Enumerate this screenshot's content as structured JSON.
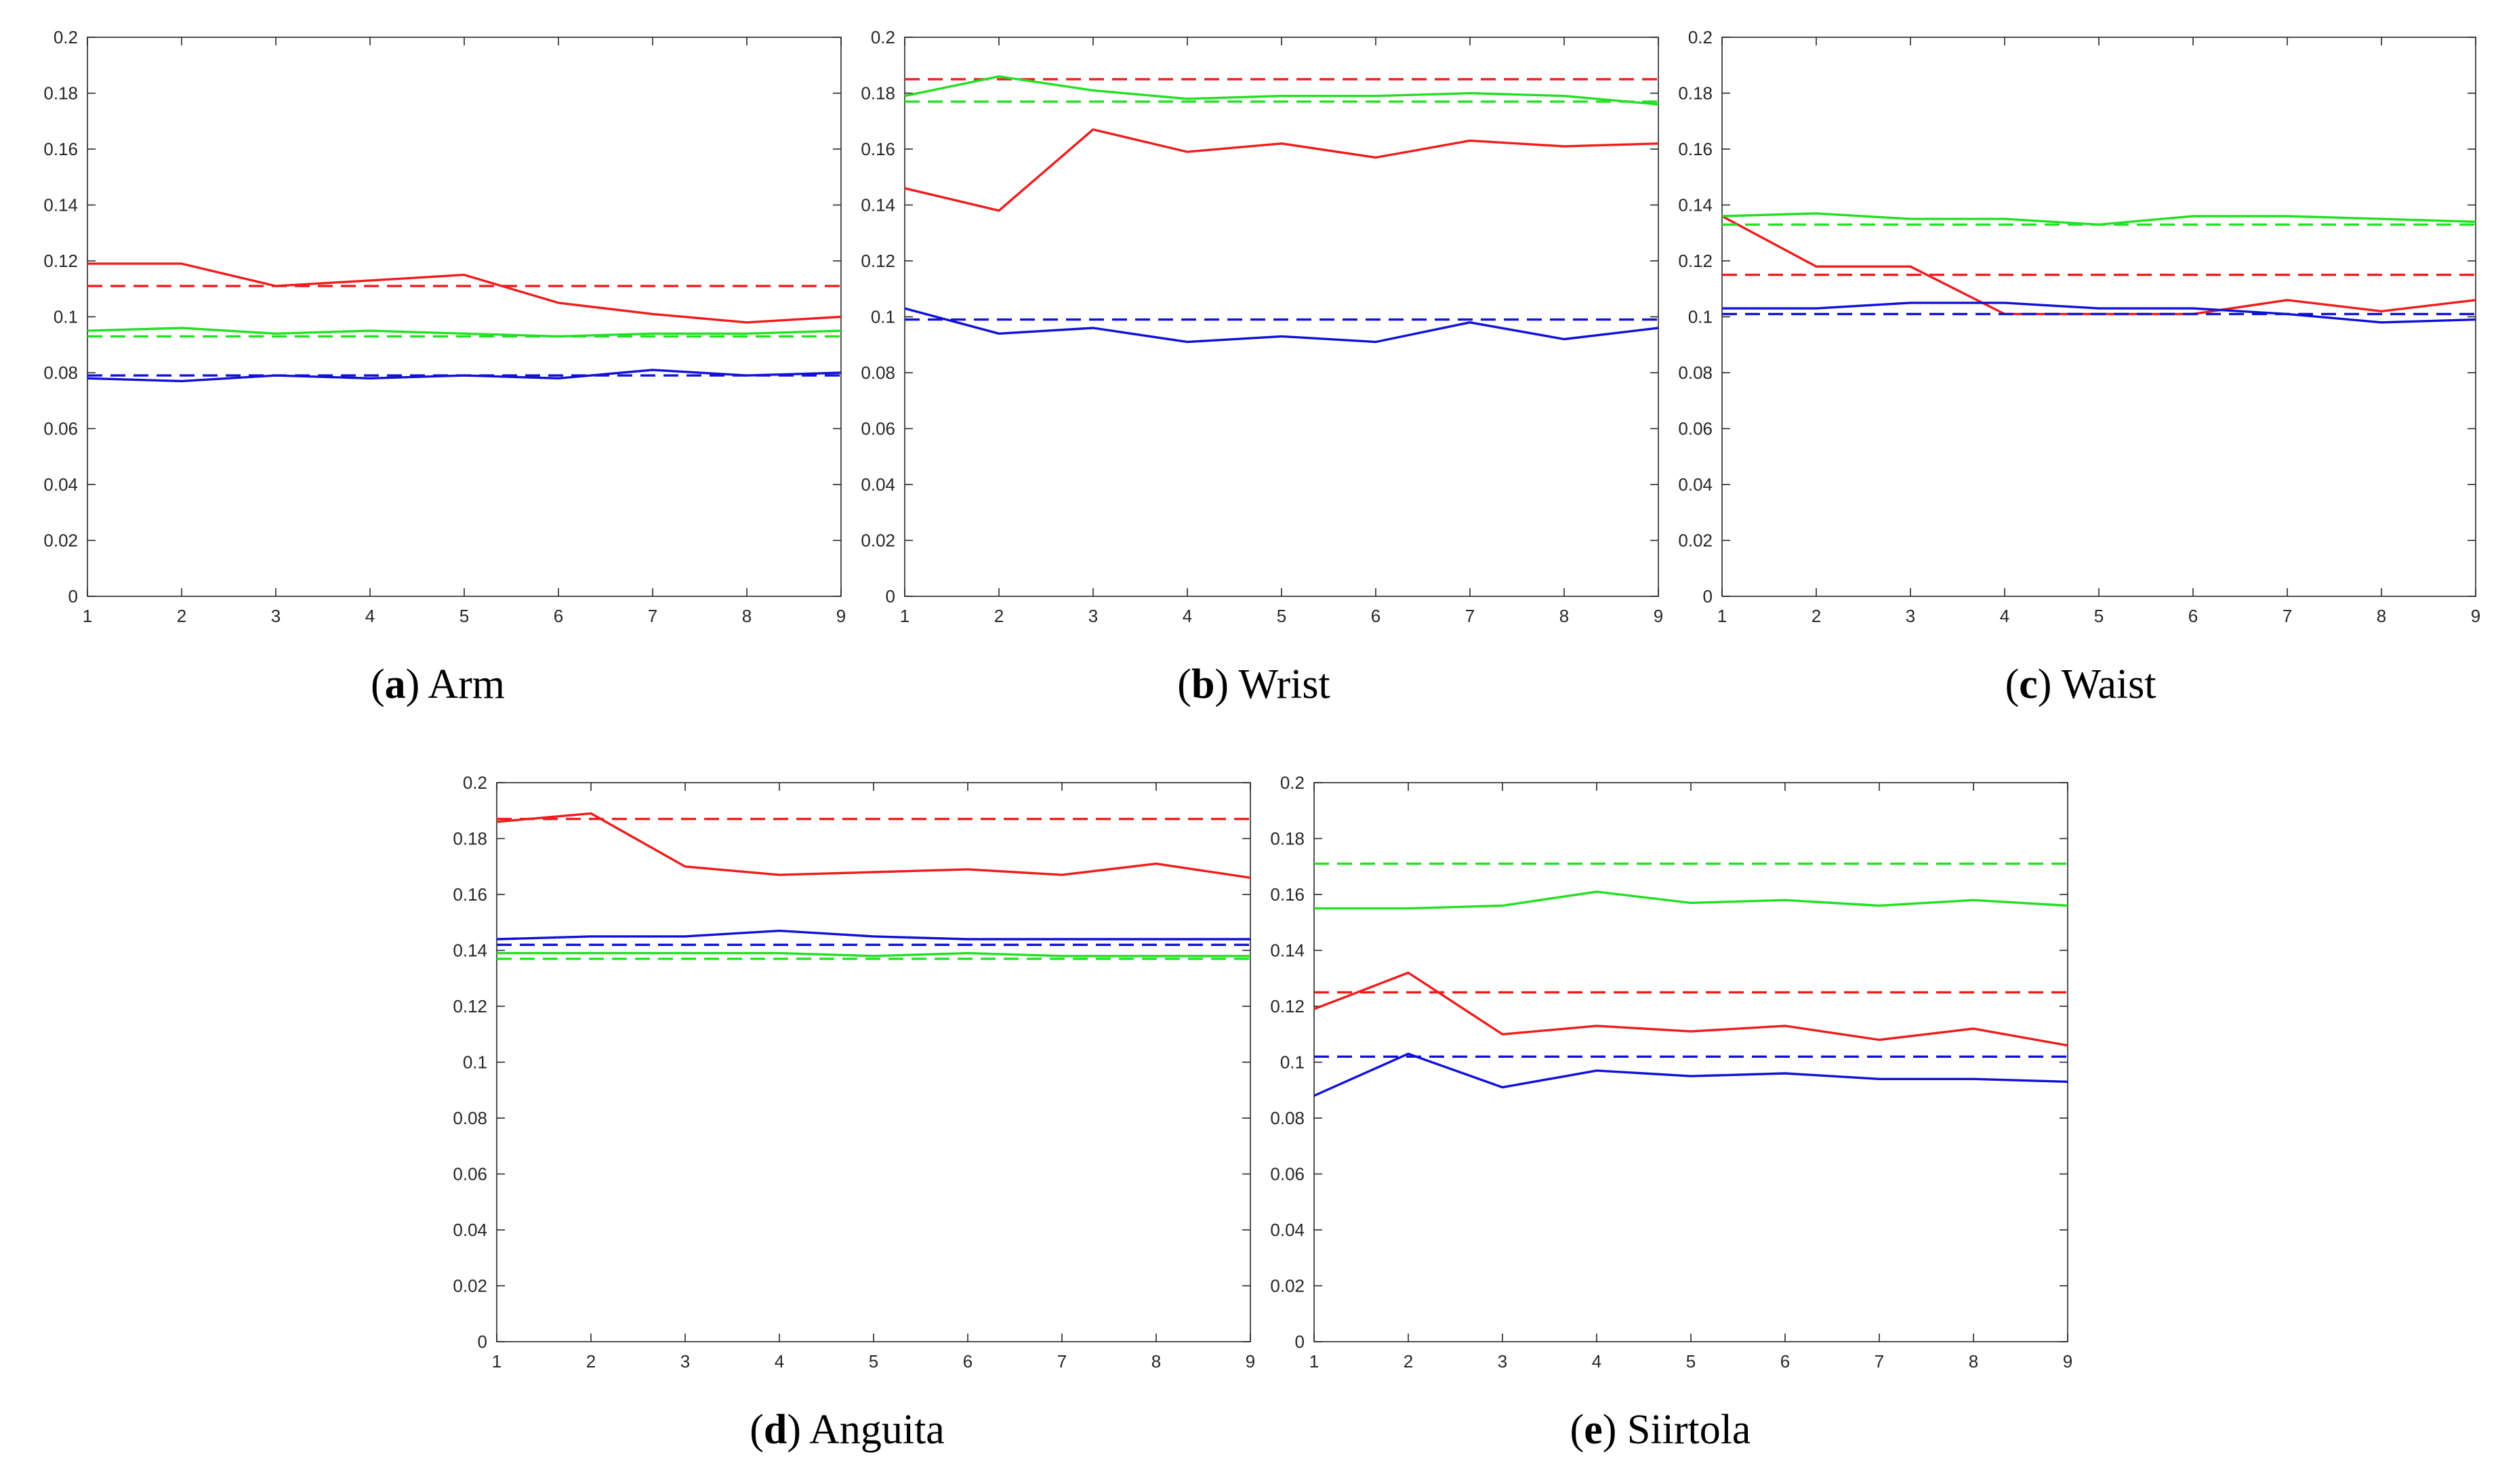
{
  "colors": {
    "red": "#ee1c1c",
    "green": "#22e022",
    "blue": "#1010d8",
    "axis": "#262626"
  },
  "chart_data": [
    {
      "type": "line",
      "caption_letter": "(a)",
      "caption_text": "Arm",
      "x": [
        1,
        2,
        3,
        4,
        5,
        6,
        7,
        8,
        9
      ],
      "xlim": [
        1,
        9
      ],
      "ylim": [
        0,
        0.2
      ],
      "x_ticks": [
        "1",
        "2",
        "3",
        "4",
        "5",
        "6",
        "7",
        "8",
        "9"
      ],
      "y_ticks": [
        "0",
        "0.02",
        "0.04",
        "0.06",
        "0.08",
        "0.1",
        "0.12",
        "0.14",
        "0.16",
        "0.18",
        "0.2"
      ],
      "grid": false,
      "series": [
        {
          "color": "red",
          "style": "solid",
          "values": [
            0.119,
            0.119,
            0.111,
            0.113,
            0.115,
            0.105,
            0.101,
            0.098,
            0.1
          ]
        },
        {
          "color": "red",
          "style": "dashed",
          "values": [
            0.111,
            0.111,
            0.111,
            0.111,
            0.111,
            0.111,
            0.111,
            0.111,
            0.111
          ]
        },
        {
          "color": "green",
          "style": "solid",
          "values": [
            0.095,
            0.096,
            0.094,
            0.095,
            0.094,
            0.093,
            0.094,
            0.094,
            0.095
          ]
        },
        {
          "color": "green",
          "style": "dashed",
          "values": [
            0.093,
            0.093,
            0.093,
            0.093,
            0.093,
            0.093,
            0.093,
            0.093,
            0.093
          ]
        },
        {
          "color": "blue",
          "style": "solid",
          "values": [
            0.078,
            0.077,
            0.079,
            0.078,
            0.079,
            0.078,
            0.081,
            0.079,
            0.08
          ]
        },
        {
          "color": "blue",
          "style": "dashed",
          "values": [
            0.079,
            0.079,
            0.079,
            0.079,
            0.079,
            0.079,
            0.079,
            0.079,
            0.079
          ]
        }
      ]
    },
    {
      "type": "line",
      "caption_letter": "(b)",
      "caption_text": "Wrist",
      "x": [
        1,
        2,
        3,
        4,
        5,
        6,
        7,
        8,
        9
      ],
      "xlim": [
        1,
        9
      ],
      "ylim": [
        0,
        0.2
      ],
      "x_ticks": [
        "1",
        "2",
        "3",
        "4",
        "5",
        "6",
        "7",
        "8",
        "9"
      ],
      "y_ticks": [
        "0",
        "0.02",
        "0.04",
        "0.06",
        "0.08",
        "0.1",
        "0.12",
        "0.14",
        "0.16",
        "0.18",
        "0.2"
      ],
      "grid": false,
      "series": [
        {
          "color": "red",
          "style": "solid",
          "values": [
            0.146,
            0.138,
            0.167,
            0.159,
            0.162,
            0.157,
            0.163,
            0.161,
            0.162
          ]
        },
        {
          "color": "red",
          "style": "dashed",
          "values": [
            0.185,
            0.185,
            0.185,
            0.185,
            0.185,
            0.185,
            0.185,
            0.185,
            0.185
          ]
        },
        {
          "color": "green",
          "style": "solid",
          "values": [
            0.179,
            0.186,
            0.181,
            0.178,
            0.179,
            0.179,
            0.18,
            0.179,
            0.176
          ]
        },
        {
          "color": "green",
          "style": "dashed",
          "values": [
            0.177,
            0.177,
            0.177,
            0.177,
            0.177,
            0.177,
            0.177,
            0.177,
            0.177
          ]
        },
        {
          "color": "blue",
          "style": "solid",
          "values": [
            0.103,
            0.094,
            0.096,
            0.091,
            0.093,
            0.091,
            0.098,
            0.092,
            0.096
          ]
        },
        {
          "color": "blue",
          "style": "dashed",
          "values": [
            0.099,
            0.099,
            0.099,
            0.099,
            0.099,
            0.099,
            0.099,
            0.099,
            0.099
          ]
        }
      ]
    },
    {
      "type": "line",
      "caption_letter": "(c)",
      "caption_text": "Waist",
      "x": [
        1,
        2,
        3,
        4,
        5,
        6,
        7,
        8,
        9
      ],
      "xlim": [
        1,
        9
      ],
      "ylim": [
        0,
        0.2
      ],
      "x_ticks": [
        "1",
        "2",
        "3",
        "4",
        "5",
        "6",
        "7",
        "8",
        "9"
      ],
      "y_ticks": [
        "0",
        "0.02",
        "0.04",
        "0.06",
        "0.08",
        "0.1",
        "0.12",
        "0.14",
        "0.16",
        "0.18",
        "0.2"
      ],
      "grid": false,
      "series": [
        {
          "color": "red",
          "style": "solid",
          "values": [
            0.136,
            0.118,
            0.118,
            0.101,
            0.101,
            0.101,
            0.106,
            0.102,
            0.106
          ]
        },
        {
          "color": "red",
          "style": "dashed",
          "values": [
            0.115,
            0.115,
            0.115,
            0.115,
            0.115,
            0.115,
            0.115,
            0.115,
            0.115
          ]
        },
        {
          "color": "green",
          "style": "solid",
          "values": [
            0.136,
            0.137,
            0.135,
            0.135,
            0.133,
            0.136,
            0.136,
            0.135,
            0.134
          ]
        },
        {
          "color": "green",
          "style": "dashed",
          "values": [
            0.133,
            0.133,
            0.133,
            0.133,
            0.133,
            0.133,
            0.133,
            0.133,
            0.133
          ]
        },
        {
          "color": "blue",
          "style": "solid",
          "values": [
            0.103,
            0.103,
            0.105,
            0.105,
            0.103,
            0.103,
            0.101,
            0.098,
            0.099
          ]
        },
        {
          "color": "blue",
          "style": "dashed",
          "values": [
            0.101,
            0.101,
            0.101,
            0.101,
            0.101,
            0.101,
            0.101,
            0.101,
            0.101
          ]
        }
      ]
    },
    {
      "type": "line",
      "caption_letter": "(d)",
      "caption_text": "Anguita",
      "x": [
        1,
        2,
        3,
        4,
        5,
        6,
        7,
        8,
        9
      ],
      "xlim": [
        1,
        9
      ],
      "ylim": [
        0,
        0.2
      ],
      "x_ticks": [
        "1",
        "2",
        "3",
        "4",
        "5",
        "6",
        "7",
        "8",
        "9"
      ],
      "y_ticks": [
        "0",
        "0.02",
        "0.04",
        "0.06",
        "0.08",
        "0.1",
        "0.12",
        "0.14",
        "0.16",
        "0.18",
        "0.2"
      ],
      "grid": false,
      "series": [
        {
          "color": "red",
          "style": "solid",
          "values": [
            0.186,
            0.189,
            0.17,
            0.167,
            0.168,
            0.169,
            0.167,
            0.171,
            0.166
          ]
        },
        {
          "color": "red",
          "style": "dashed",
          "values": [
            0.187,
            0.187,
            0.187,
            0.187,
            0.187,
            0.187,
            0.187,
            0.187,
            0.187
          ]
        },
        {
          "color": "green",
          "style": "solid",
          "values": [
            0.139,
            0.139,
            0.139,
            0.139,
            0.138,
            0.139,
            0.138,
            0.138,
            0.138
          ]
        },
        {
          "color": "green",
          "style": "dashed",
          "values": [
            0.137,
            0.137,
            0.137,
            0.137,
            0.137,
            0.137,
            0.137,
            0.137,
            0.137
          ]
        },
        {
          "color": "blue",
          "style": "solid",
          "values": [
            0.144,
            0.145,
            0.145,
            0.147,
            0.145,
            0.144,
            0.144,
            0.144,
            0.144
          ]
        },
        {
          "color": "blue",
          "style": "dashed",
          "values": [
            0.142,
            0.142,
            0.142,
            0.142,
            0.142,
            0.142,
            0.142,
            0.142,
            0.142
          ]
        }
      ]
    },
    {
      "type": "line",
      "caption_letter": "(e)",
      "caption_text": "Siirtola",
      "x": [
        1,
        2,
        3,
        4,
        5,
        6,
        7,
        8,
        9
      ],
      "xlim": [
        1,
        9
      ],
      "ylim": [
        0,
        0.2
      ],
      "x_ticks": [
        "1",
        "2",
        "3",
        "4",
        "5",
        "6",
        "7",
        "8",
        "9"
      ],
      "y_ticks": [
        "0",
        "0.02",
        "0.04",
        "0.06",
        "0.08",
        "0.1",
        "0.12",
        "0.14",
        "0.16",
        "0.18",
        "0.2"
      ],
      "grid": false,
      "series": [
        {
          "color": "red",
          "style": "solid",
          "values": [
            0.119,
            0.132,
            0.11,
            0.113,
            0.111,
            0.113,
            0.108,
            0.112,
            0.106
          ]
        },
        {
          "color": "red",
          "style": "dashed",
          "values": [
            0.125,
            0.125,
            0.125,
            0.125,
            0.125,
            0.125,
            0.125,
            0.125,
            0.125
          ]
        },
        {
          "color": "green",
          "style": "solid",
          "values": [
            0.155,
            0.155,
            0.156,
            0.161,
            0.157,
            0.158,
            0.156,
            0.158,
            0.156
          ]
        },
        {
          "color": "green",
          "style": "dashed",
          "values": [
            0.171,
            0.171,
            0.171,
            0.171,
            0.171,
            0.171,
            0.171,
            0.171,
            0.171
          ]
        },
        {
          "color": "blue",
          "style": "solid",
          "values": [
            0.088,
            0.103,
            0.091,
            0.097,
            0.095,
            0.096,
            0.094,
            0.094,
            0.093
          ]
        },
        {
          "color": "blue",
          "style": "dashed",
          "values": [
            0.102,
            0.102,
            0.102,
            0.102,
            0.102,
            0.102,
            0.102,
            0.102,
            0.102
          ]
        }
      ]
    }
  ]
}
